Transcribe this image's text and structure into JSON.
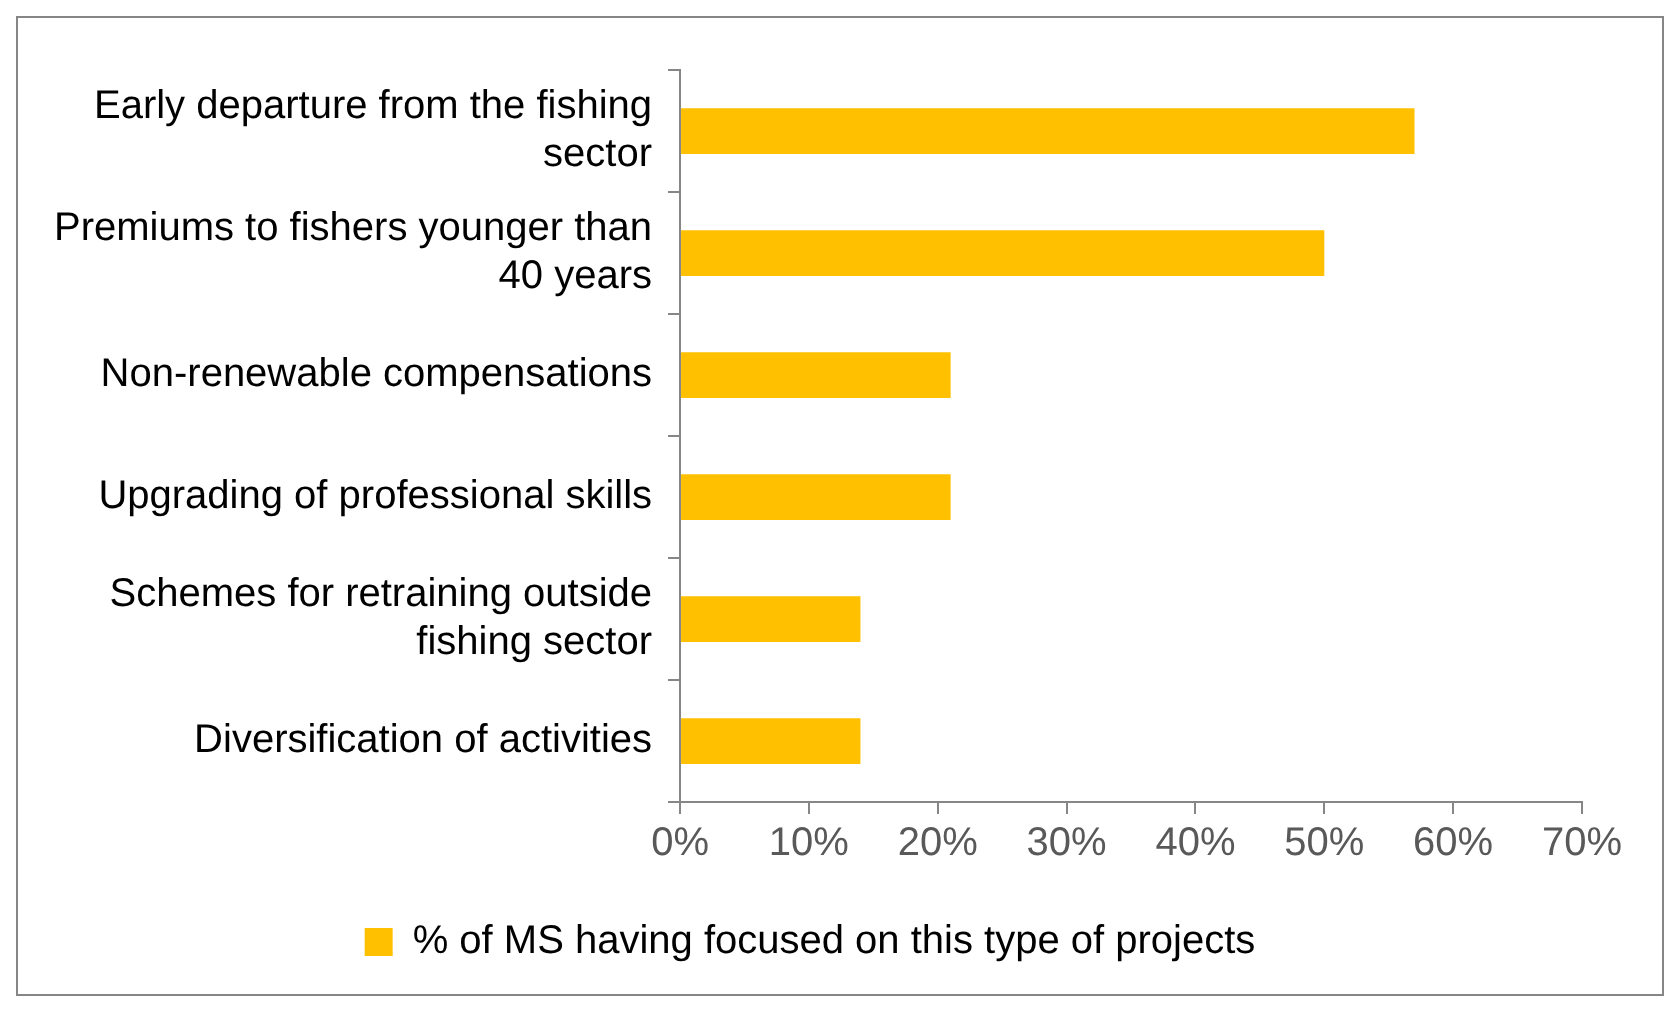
{
  "chart_data": {
    "type": "bar",
    "orientation": "horizontal",
    "categories": [
      "Early departure from the fishing sector",
      "Premiums to fishers younger than 40 years",
      "Non-renewable compensations",
      "Upgrading of professional skills",
      "Schemes for retraining outside fishing sector",
      "Diversification of activities"
    ],
    "series": [
      {
        "name": "% of MS having focused on this type of projects",
        "color": "#ffc000",
        "values": [
          57,
          50,
          21,
          21,
          14,
          14
        ]
      }
    ],
    "xlim": [
      0,
      70
    ],
    "xticks": [
      {
        "value": 0,
        "label": "0%"
      },
      {
        "value": 10,
        "label": "10%"
      },
      {
        "value": 20,
        "label": "20%"
      },
      {
        "value": 30,
        "label": "30%"
      },
      {
        "value": 40,
        "label": "40%"
      },
      {
        "value": 50,
        "label": "50%"
      },
      {
        "value": 60,
        "label": "60%"
      },
      {
        "value": 70,
        "label": "70%"
      }
    ],
    "grid": false,
    "legend": "bottom"
  }
}
